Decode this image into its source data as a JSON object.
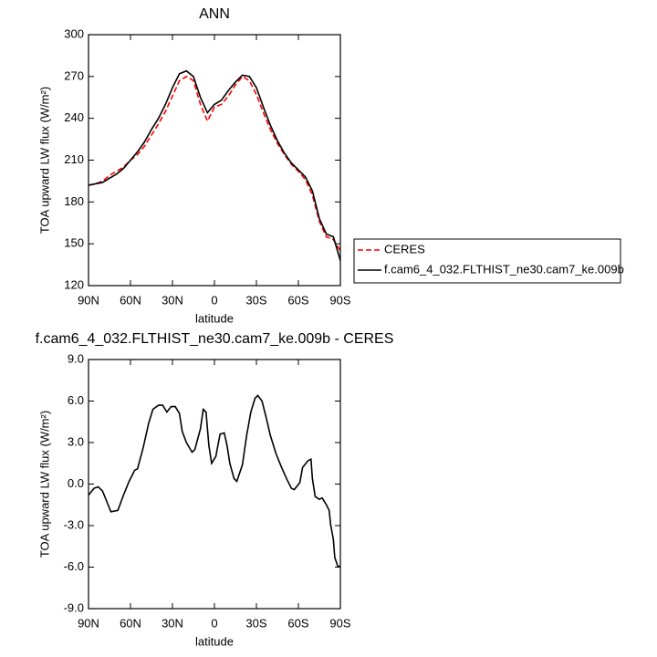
{
  "chart_data": [
    {
      "type": "line",
      "title": "ANN",
      "xlabel": "latitude",
      "ylabel": "TOA upward LW flux (W/m²)",
      "x": [
        90,
        85,
        80,
        75,
        70,
        65,
        60,
        55,
        50,
        45,
        40,
        35,
        30,
        25,
        20,
        15,
        10,
        5,
        0,
        -5,
        -10,
        -15,
        -20,
        -25,
        -30,
        -35,
        -40,
        -45,
        -50,
        -55,
        -60,
        -65,
        -70,
        -75,
        -80,
        -85,
        -90
      ],
      "series": [
        {
          "name": "CERES",
          "color": "#ff0000",
          "line_style": "dashed",
          "values": [
            192,
            193,
            195,
            199,
            202,
            205,
            210,
            214,
            220,
            228,
            236,
            245,
            256,
            267,
            270,
            267,
            250,
            238,
            248,
            250,
            256,
            264,
            270,
            267,
            257,
            244,
            232,
            222,
            214,
            207,
            202,
            196,
            185,
            166,
            155,
            153,
            145
          ]
        },
        {
          "name": "f.cam6_4_032.FLTHIST_ne30.cam7_ke.009b",
          "color": "#000000",
          "line_style": "solid",
          "values": [
            192,
            193,
            194,
            197,
            200,
            204,
            210,
            216,
            223,
            232,
            240,
            250,
            262,
            272,
            274,
            270,
            255,
            244,
            250,
            253,
            260,
            266,
            271,
            270,
            262,
            248,
            235,
            224,
            215,
            208,
            203,
            198,
            188,
            168,
            157,
            155,
            138
          ]
        }
      ],
      "xlim": [
        90,
        -90
      ],
      "xticks": [
        {
          "value": 90,
          "label": "90N"
        },
        {
          "value": 60,
          "label": "60N"
        },
        {
          "value": 30,
          "label": "30N"
        },
        {
          "value": 0,
          "label": "0"
        },
        {
          "value": -30,
          "label": "30S"
        },
        {
          "value": -60,
          "label": "60S"
        },
        {
          "value": -90,
          "label": "90S"
        }
      ],
      "ylim": [
        120,
        300
      ],
      "yticks": [
        120,
        150,
        180,
        210,
        240,
        270,
        300
      ],
      "legend": "outside-right"
    },
    {
      "type": "line",
      "title": "f.cam6_4_032.FLTHIST_ne30.cam7_ke.009b - CERES",
      "xlabel": "latitude",
      "ylabel": "TOA upward LW flux (W/m²)",
      "x": [
        90,
        86,
        83,
        80,
        76,
        74,
        69,
        65,
        61,
        57,
        55,
        51,
        47,
        44,
        40,
        37,
        34,
        31,
        28,
        25,
        23,
        20,
        16,
        14,
        10,
        8,
        6,
        4,
        2,
        -1,
        -4,
        -7,
        -9,
        -11,
        -14,
        -16,
        -20,
        -23,
        -26,
        -29,
        -31,
        -34,
        -37,
        -40,
        -44,
        -48,
        -52,
        -55,
        -57,
        -61,
        -63,
        -67,
        -69,
        -70,
        -72,
        -75,
        -77,
        -80,
        -82,
        -83,
        -85,
        -86,
        -88,
        -90
      ],
      "series": [
        {
          "name": "f.cam6_4_032.FLTHIST_ne30.cam7_ke.009b - CERES",
          "color": "#000000",
          "line_style": "solid",
          "values": [
            -0.8,
            -0.3,
            -0.2,
            -0.5,
            -1.5,
            -2.0,
            -1.9,
            -0.8,
            0.2,
            1.0,
            1.1,
            2.6,
            4.4,
            5.4,
            5.7,
            5.7,
            5.2,
            5.6,
            5.6,
            5.1,
            3.8,
            3.0,
            2.3,
            2.5,
            4.0,
            5.4,
            5.2,
            2.8,
            1.5,
            2.0,
            3.6,
            3.7,
            2.8,
            1.5,
            0.4,
            0.2,
            1.4,
            3.5,
            5.2,
            6.2,
            6.4,
            6.0,
            4.8,
            3.5,
            2.2,
            1.2,
            0.3,
            -0.3,
            -0.4,
            0.1,
            1.2,
            1.7,
            1.8,
            0.4,
            -0.9,
            -1.1,
            -1.0,
            -1.5,
            -1.9,
            -2.9,
            -4.0,
            -5.3,
            -5.9,
            -6.0
          ]
        }
      ],
      "xlim": [
        90,
        -90
      ],
      "xticks": [
        {
          "value": 90,
          "label": "90N"
        },
        {
          "value": 60,
          "label": "60N"
        },
        {
          "value": 30,
          "label": "30N"
        },
        {
          "value": 0,
          "label": "0"
        },
        {
          "value": -30,
          "label": "30S"
        },
        {
          "value": -60,
          "label": "60S"
        },
        {
          "value": -90,
          "label": "90S"
        }
      ],
      "ylim": [
        -9,
        9
      ],
      "yticks": [
        {
          "value": -9,
          "label": "-9.0"
        },
        {
          "value": -6,
          "label": "-6.0"
        },
        {
          "value": -3,
          "label": "-3.0"
        },
        {
          "value": 0,
          "label": "0.0"
        },
        {
          "value": 3,
          "label": "3.0"
        },
        {
          "value": 6,
          "label": "6.0"
        },
        {
          "value": 9,
          "label": "9.0"
        }
      ]
    }
  ]
}
